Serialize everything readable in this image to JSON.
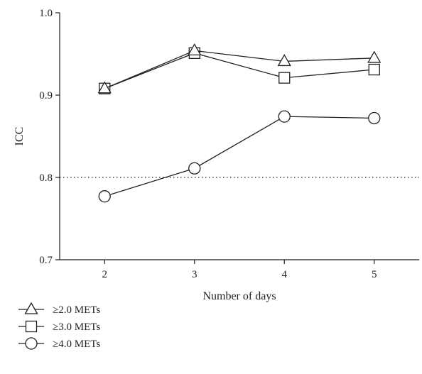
{
  "chart_data": {
    "type": "line",
    "title": "",
    "xlabel": "Number of days",
    "ylabel": "ICC",
    "x": [
      2,
      3,
      4,
      5
    ],
    "x_tick_labels": [
      "2",
      "3",
      "4",
      "5"
    ],
    "xlim": [
      1.5,
      5.5
    ],
    "ylim": [
      0.7,
      1.0
    ],
    "y_ticks": [
      0.7,
      0.8,
      0.9,
      1.0
    ],
    "y_tick_labels": [
      "0.7",
      "0.8",
      "0.9",
      "1.0"
    ],
    "reference_line": {
      "y": 0.8,
      "style": "dotted"
    },
    "grid": false,
    "legend_position": "bottom-left",
    "series": [
      {
        "name": "≥2.0 METs",
        "marker": "triangle",
        "values": [
          0.908,
          0.954,
          0.941,
          0.945
        ]
      },
      {
        "name": "≥3.0 METs",
        "marker": "square",
        "values": [
          0.908,
          0.951,
          0.921,
          0.931
        ]
      },
      {
        "name": "≥4.0 METs",
        "marker": "circle",
        "values": [
          0.777,
          0.811,
          0.874,
          0.872
        ]
      }
    ],
    "colors": {
      "line": "#231f20",
      "marker_fill": "#ffffff",
      "reference_line": "#231f20"
    }
  }
}
